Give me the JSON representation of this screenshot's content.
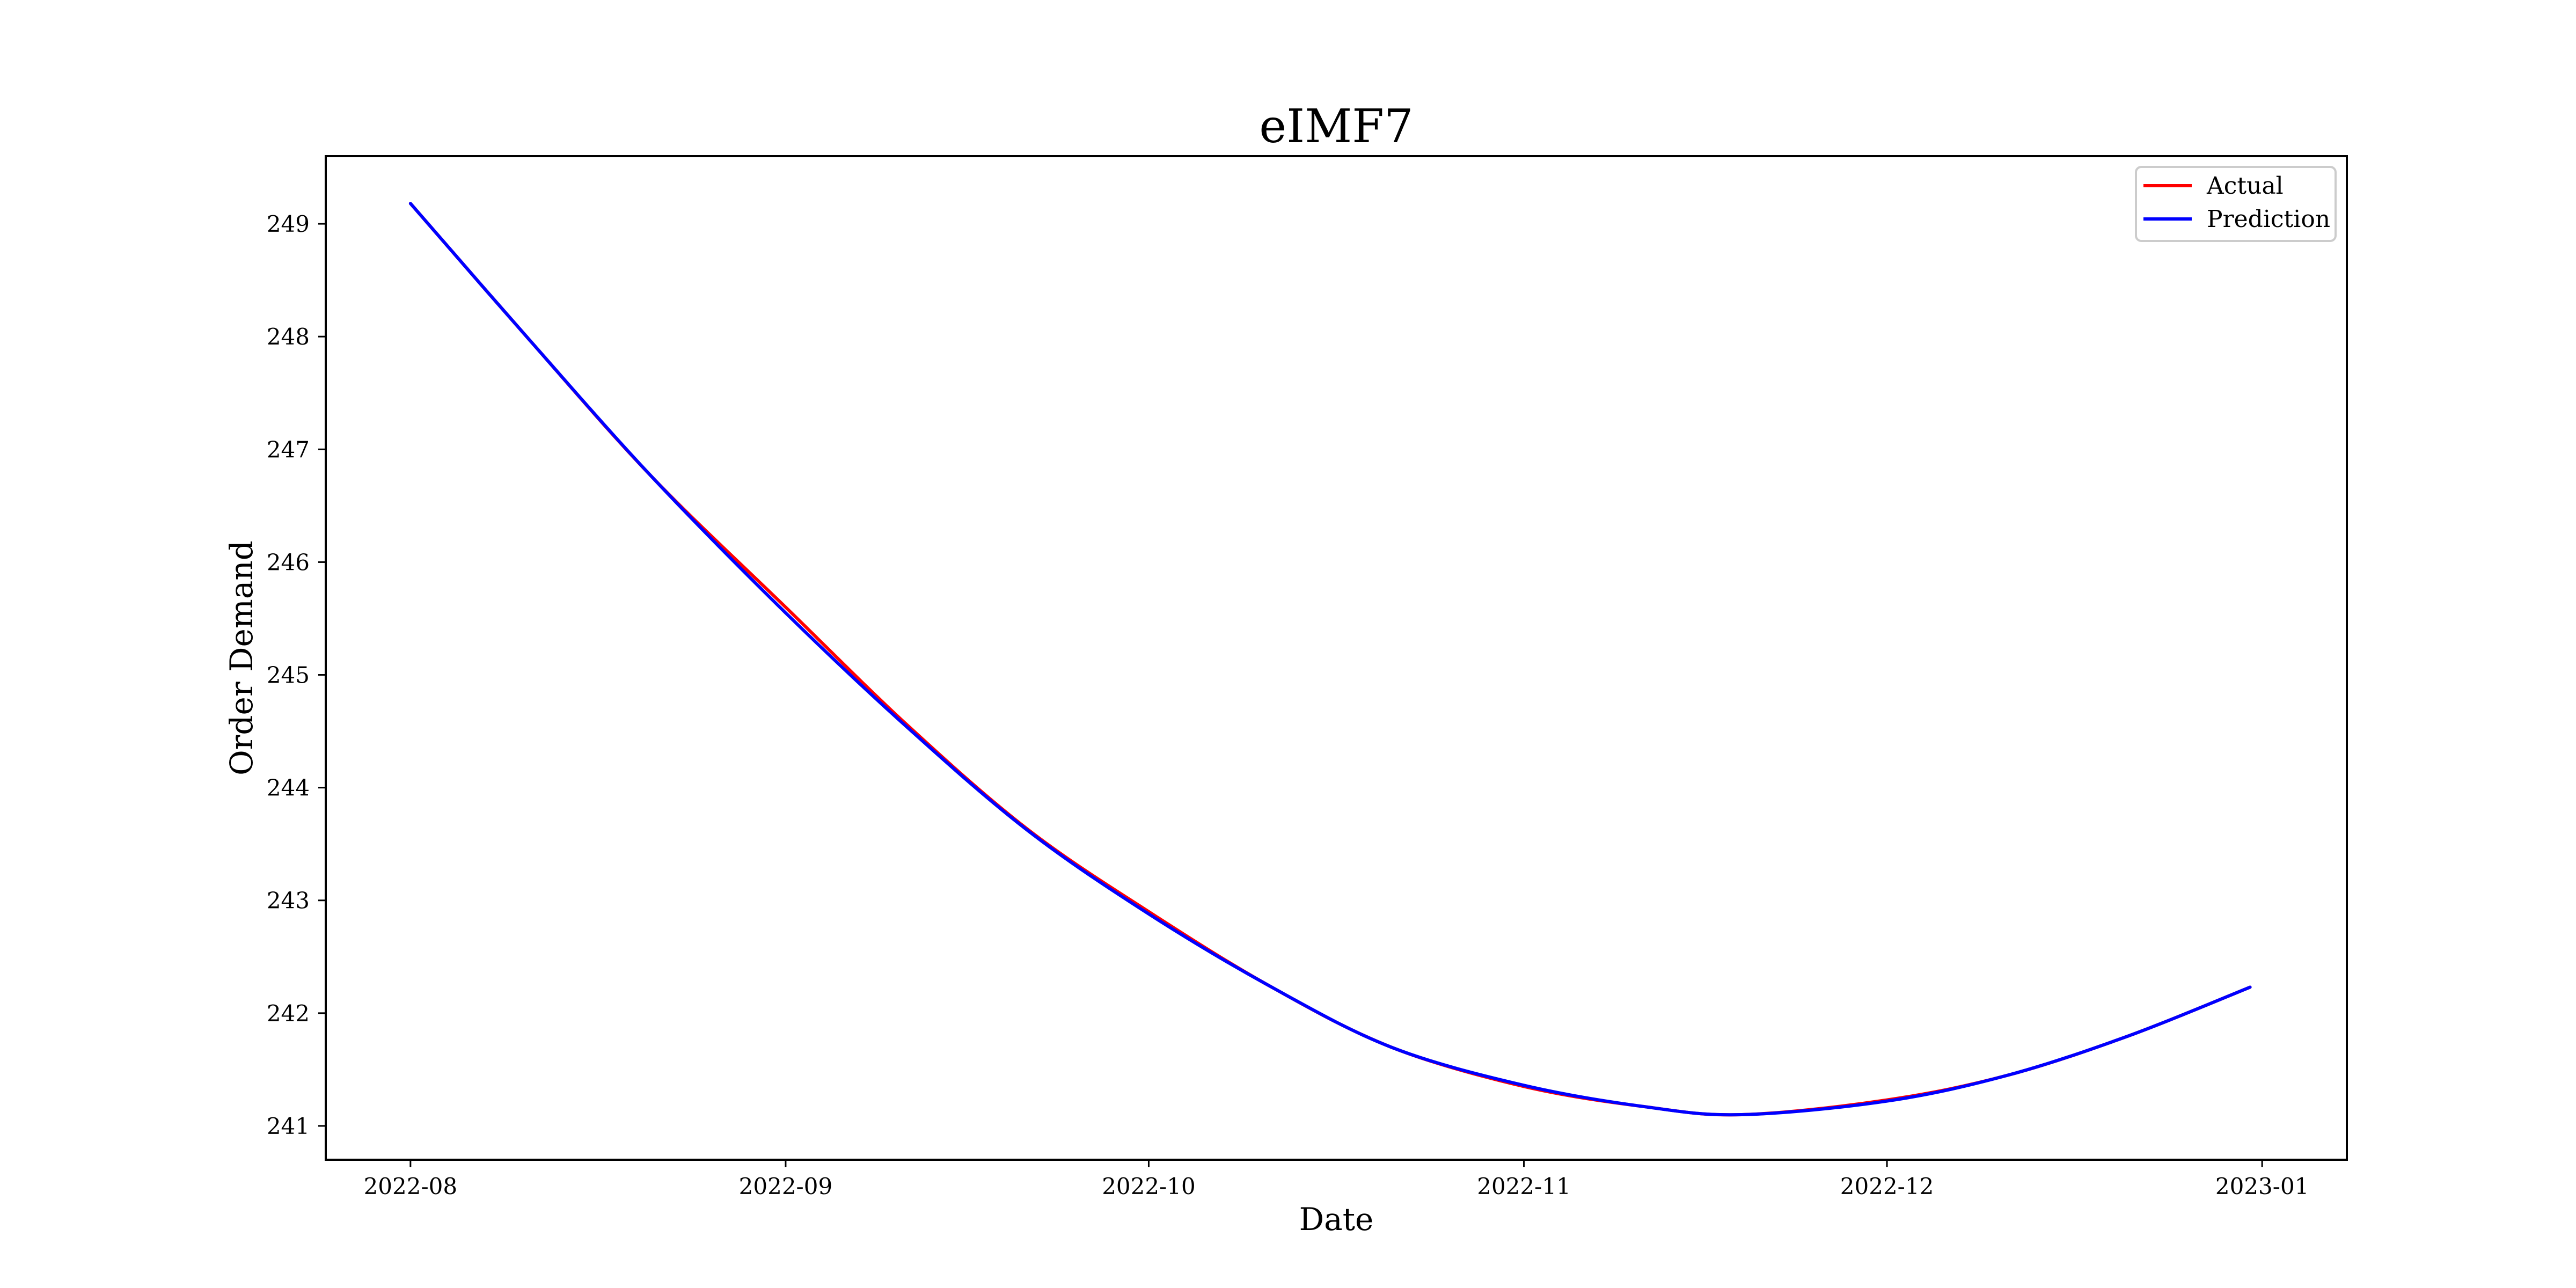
{
  "chart_data": {
    "type": "line",
    "title": "eIMF7",
    "xlabel": "Date",
    "ylabel": "Order Demand",
    "x_range": [
      "2022-07-25",
      "2023-01-08"
    ],
    "ylim": [
      240.7,
      249.6
    ],
    "x_ticks": [
      "2022-08",
      "2022-09",
      "2022-10",
      "2022-11",
      "2022-12",
      "2023-01"
    ],
    "x_tick_dates": [
      "2022-08-01",
      "2022-09-01",
      "2022-10-01",
      "2022-11-01",
      "2022-12-01",
      "2023-01-01"
    ],
    "y_ticks": [
      241,
      242,
      243,
      244,
      245,
      246,
      247,
      248,
      249
    ],
    "grid": false,
    "legend_position": "top-right",
    "series": [
      {
        "name": "Actual",
        "color": "#ff0000",
        "points": [
          [
            "2022-08-01",
            249.18
          ],
          [
            "2022-08-11",
            247.95
          ],
          [
            "2022-08-21",
            246.75
          ],
          [
            "2022-09-01",
            245.6
          ],
          [
            "2022-09-11",
            244.56
          ],
          [
            "2022-09-21",
            243.63
          ],
          [
            "2022-10-01",
            242.9
          ],
          [
            "2022-10-11",
            242.24
          ],
          [
            "2022-10-21",
            241.7
          ],
          [
            "2022-11-01",
            241.35
          ],
          [
            "2022-11-11",
            241.17
          ],
          [
            "2022-11-19",
            241.1
          ],
          [
            "2022-12-01",
            241.23
          ],
          [
            "2022-12-11",
            241.45
          ],
          [
            "2022-12-21",
            241.8
          ],
          [
            "2022-12-31",
            242.23
          ]
        ]
      },
      {
        "name": "Prediction",
        "color": "#0000ff",
        "points": [
          [
            "2022-08-01",
            249.18
          ],
          [
            "2022-08-11",
            247.95
          ],
          [
            "2022-08-21",
            246.75
          ],
          [
            "2022-09-01",
            245.55
          ],
          [
            "2022-09-11",
            244.54
          ],
          [
            "2022-09-21",
            243.62
          ],
          [
            "2022-10-01",
            242.88
          ],
          [
            "2022-10-11",
            242.24
          ],
          [
            "2022-10-21",
            241.7
          ],
          [
            "2022-11-01",
            241.36
          ],
          [
            "2022-11-11",
            241.17
          ],
          [
            "2022-11-19",
            241.1
          ],
          [
            "2022-12-01",
            241.22
          ],
          [
            "2022-12-11",
            241.45
          ],
          [
            "2022-12-21",
            241.8
          ],
          [
            "2022-12-31",
            242.23
          ]
        ]
      }
    ]
  }
}
